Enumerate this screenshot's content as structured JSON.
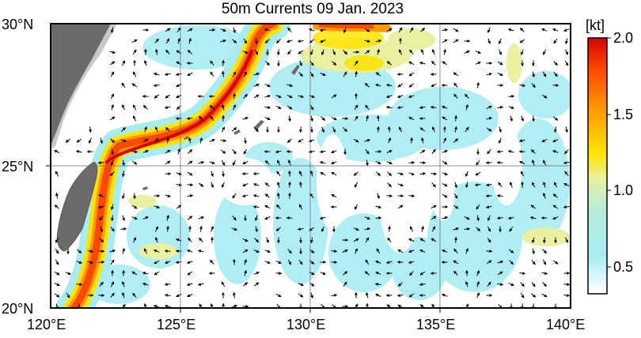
{
  "title": "50m Currents  09 Jan. 2023",
  "lat_labels": [
    "30°N",
    "25°N",
    "20°N"
  ],
  "lon_labels": [
    "120°E",
    "125°E",
    "130°E",
    "135°E",
    "140°E"
  ],
  "colorbar": {
    "unit": "[kt]",
    "ticks": [
      "2.0",
      "1.5",
      "1.0",
      "0.5"
    ],
    "colors": [
      "#ffffff",
      "#a8ecf3",
      "#e9f0a0",
      "#ffe400",
      "#ff9a00",
      "#ff4800",
      "#d40000"
    ]
  },
  "map": {
    "extent": {
      "lon": [
        120,
        140
      ],
      "lat": [
        20,
        30
      ]
    },
    "speed_range_kt": [
      0.2,
      2.0
    ],
    "land_color": "#6b6b6b",
    "shelf_color": "#c8c8c8",
    "grid_lons": [
      125,
      130,
      135
    ],
    "grid_lats": [
      25
    ]
  }
}
